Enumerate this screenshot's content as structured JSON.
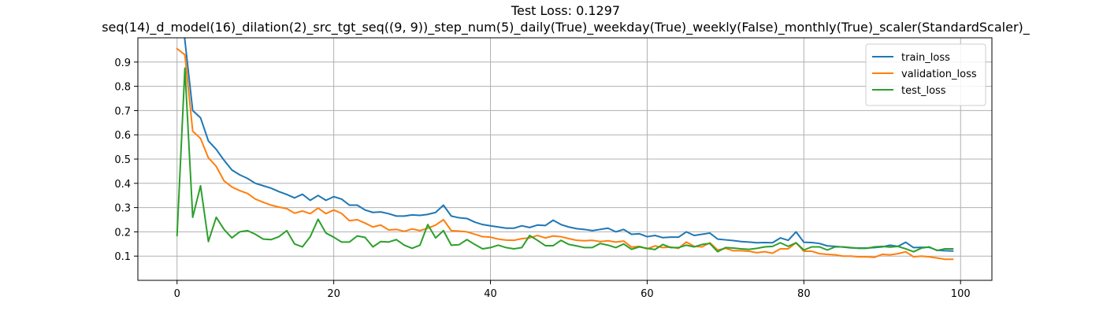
{
  "chart_data": {
    "type": "line",
    "title": "Test Loss: 0.1297",
    "subtitle": "seq(14)_d_model(16)_dilation(2)_src_tgt_seq((9, 9))_step_num(5)_daily(True)_weekday(True)_weekly(False)_monthly(True)_scaler(StandardScaler)_",
    "xlabel": "",
    "ylabel": "",
    "xlim": [
      -5,
      104
    ],
    "ylim": [
      0.0,
      1.0
    ],
    "xticks": [
      0,
      20,
      40,
      60,
      80,
      100
    ],
    "yticks": [
      0.1,
      0.2,
      0.3,
      0.4,
      0.5,
      0.6,
      0.7,
      0.8,
      0.9
    ],
    "xtick_labels": [
      "0",
      "20",
      "40",
      "60",
      "80",
      "100"
    ],
    "ytick_labels": [
      "0.1",
      "0.2",
      "0.3",
      "0.4",
      "0.5",
      "0.6",
      "0.7",
      "0.8",
      "0.9"
    ],
    "grid": true,
    "legend": "top-right",
    "x": [
      0,
      1,
      2,
      3,
      4,
      5,
      6,
      7,
      8,
      9,
      10,
      11,
      12,
      13,
      14,
      15,
      16,
      17,
      18,
      19,
      20,
      21,
      22,
      23,
      24,
      25,
      26,
      27,
      28,
      29,
      30,
      31,
      32,
      33,
      34,
      35,
      36,
      37,
      38,
      39,
      40,
      41,
      42,
      43,
      44,
      45,
      46,
      47,
      48,
      49,
      50,
      51,
      52,
      53,
      54,
      55,
      56,
      57,
      58,
      59,
      60,
      61,
      62,
      63,
      64,
      65,
      66,
      67,
      68,
      69,
      70,
      71,
      72,
      73,
      74,
      75,
      76,
      77,
      78,
      79,
      80,
      81,
      82,
      83,
      84,
      85,
      86,
      87,
      88,
      89,
      90,
      91,
      92,
      93,
      94,
      95,
      96,
      97,
      98,
      99
    ],
    "series": [
      {
        "name": "train_loss",
        "color": "#1f77b4",
        "values": [
          1.3,
          0.99,
          0.7,
          0.67,
          0.575,
          0.54,
          0.495,
          0.455,
          0.435,
          0.42,
          0.4,
          0.39,
          0.38,
          0.366,
          0.354,
          0.34,
          0.355,
          0.33,
          0.35,
          0.33,
          0.345,
          0.335,
          0.31,
          0.31,
          0.29,
          0.28,
          0.282,
          0.275,
          0.265,
          0.265,
          0.27,
          0.268,
          0.272,
          0.28,
          0.31,
          0.265,
          0.258,
          0.255,
          0.24,
          0.23,
          0.225,
          0.22,
          0.215,
          0.215,
          0.225,
          0.218,
          0.228,
          0.226,
          0.248,
          0.23,
          0.22,
          0.213,
          0.21,
          0.205,
          0.21,
          0.215,
          0.2,
          0.21,
          0.19,
          0.192,
          0.18,
          0.185,
          0.176,
          0.178,
          0.178,
          0.2,
          0.185,
          0.19,
          0.195,
          0.17,
          0.167,
          0.164,
          0.16,
          0.158,
          0.155,
          0.156,
          0.155,
          0.175,
          0.165,
          0.2,
          0.157,
          0.156,
          0.152,
          0.142,
          0.14,
          0.137,
          0.134,
          0.133,
          0.133,
          0.135,
          0.138,
          0.145,
          0.14,
          0.157,
          0.135,
          0.136,
          0.136,
          0.124,
          0.122,
          0.121
        ]
      },
      {
        "name": "validation_loss",
        "color": "#ff7f0e",
        "values": [
          0.955,
          0.93,
          0.615,
          0.585,
          0.505,
          0.47,
          0.41,
          0.385,
          0.37,
          0.358,
          0.335,
          0.322,
          0.31,
          0.302,
          0.296,
          0.277,
          0.286,
          0.275,
          0.298,
          0.275,
          0.29,
          0.276,
          0.246,
          0.25,
          0.236,
          0.22,
          0.228,
          0.208,
          0.21,
          0.202,
          0.212,
          0.205,
          0.215,
          0.228,
          0.25,
          0.205,
          0.203,
          0.2,
          0.19,
          0.18,
          0.178,
          0.17,
          0.166,
          0.165,
          0.172,
          0.175,
          0.185,
          0.175,
          0.183,
          0.18,
          0.172,
          0.165,
          0.163,
          0.165,
          0.16,
          0.163,
          0.158,
          0.162,
          0.137,
          0.14,
          0.13,
          0.142,
          0.135,
          0.137,
          0.132,
          0.158,
          0.14,
          0.138,
          0.155,
          0.125,
          0.132,
          0.122,
          0.122,
          0.12,
          0.114,
          0.118,
          0.112,
          0.13,
          0.13,
          0.155,
          0.12,
          0.12,
          0.11,
          0.107,
          0.105,
          0.1,
          0.1,
          0.097,
          0.097,
          0.095,
          0.107,
          0.105,
          0.11,
          0.118,
          0.097,
          0.1,
          0.097,
          0.092,
          0.087,
          0.087
        ]
      },
      {
        "name": "test_loss",
        "color": "#2ca02c",
        "values": [
          0.185,
          0.875,
          0.26,
          0.39,
          0.16,
          0.26,
          0.21,
          0.175,
          0.2,
          0.205,
          0.19,
          0.17,
          0.168,
          0.18,
          0.205,
          0.15,
          0.138,
          0.18,
          0.252,
          0.195,
          0.178,
          0.158,
          0.158,
          0.183,
          0.177,
          0.138,
          0.16,
          0.158,
          0.168,
          0.145,
          0.132,
          0.145,
          0.23,
          0.175,
          0.205,
          0.145,
          0.147,
          0.168,
          0.148,
          0.13,
          0.135,
          0.145,
          0.135,
          0.13,
          0.135,
          0.185,
          0.165,
          0.143,
          0.143,
          0.165,
          0.148,
          0.142,
          0.135,
          0.135,
          0.152,
          0.145,
          0.135,
          0.15,
          0.128,
          0.138,
          0.132,
          0.127,
          0.148,
          0.135,
          0.135,
          0.145,
          0.138,
          0.148,
          0.152,
          0.118,
          0.135,
          0.133,
          0.13,
          0.128,
          0.132,
          0.138,
          0.14,
          0.155,
          0.14,
          0.155,
          0.125,
          0.138,
          0.138,
          0.125,
          0.138,
          0.138,
          0.135,
          0.132,
          0.132,
          0.138,
          0.14,
          0.137,
          0.14,
          0.13,
          0.118,
          0.133,
          0.138,
          0.123,
          0.13,
          0.13
        ]
      }
    ]
  }
}
